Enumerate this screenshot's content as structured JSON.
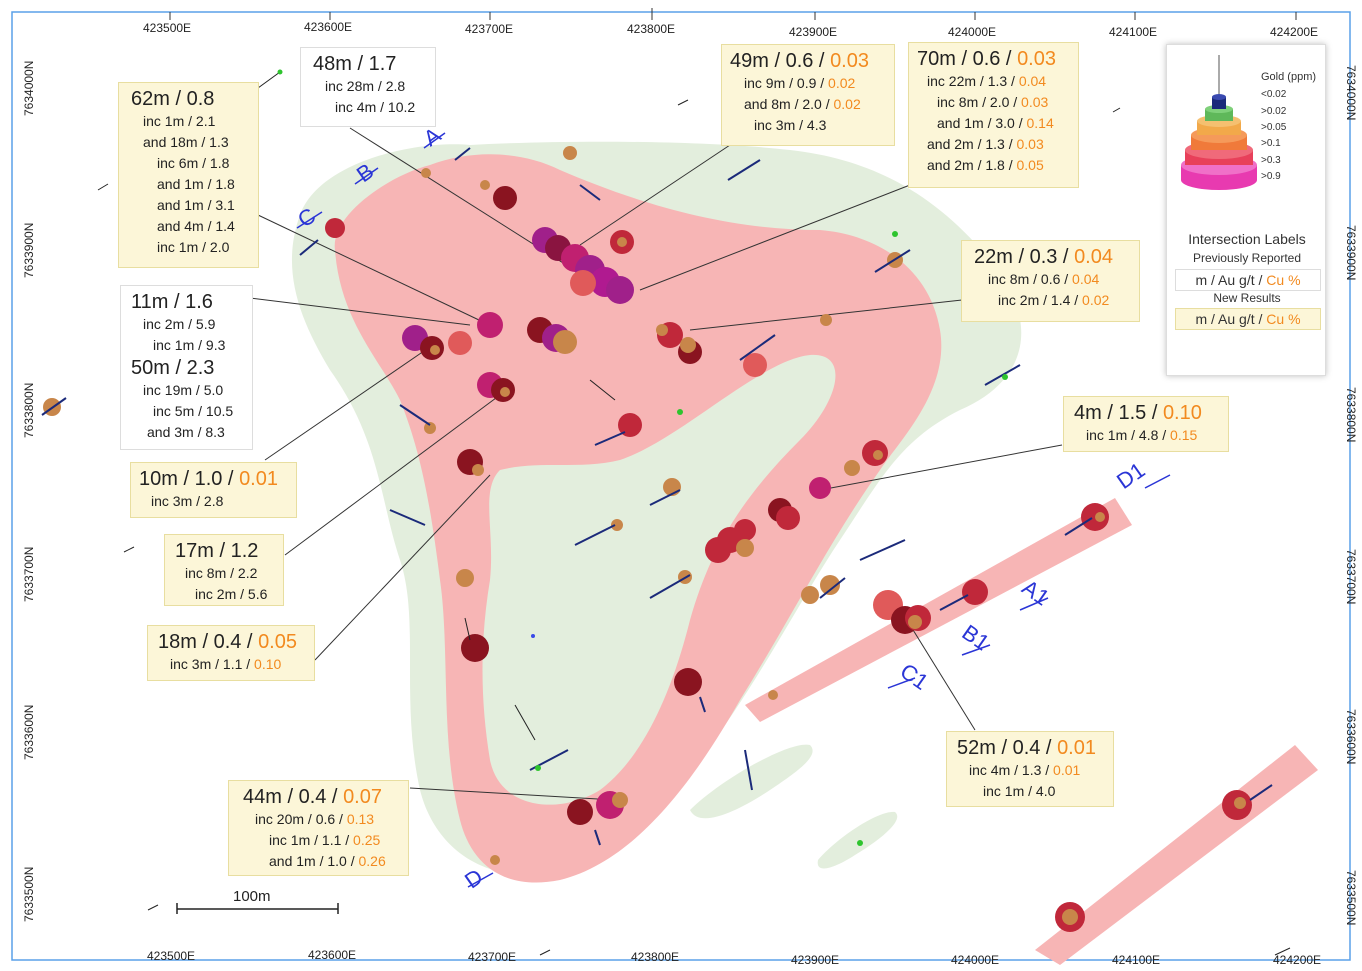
{
  "grid": {
    "top_eastings": [
      "423500E",
      "423600E",
      "423700E",
      "423800E",
      "423900E",
      "424000E",
      "424100E",
      "424200E"
    ],
    "bottom_eastings": [
      "423500E",
      "423600E",
      "423700E",
      "423800E",
      "423900E",
      "424000E",
      "424100E",
      "424200E"
    ],
    "left_northings": [
      "7634000N",
      "7633900N",
      "7633800N",
      "7633700N",
      "7633600N",
      "7633500N"
    ],
    "right_northings": [
      "7634000N",
      "7633900N",
      "7633800N",
      "7633700N",
      "7633600N",
      "7633500N"
    ]
  },
  "sections": [
    "A",
    "B",
    "C",
    "D",
    "A1",
    "B1",
    "C1",
    "D1"
  ],
  "labels": [
    {
      "id": "l62",
      "type": "prev",
      "main": "62m / 0.8",
      "main_cu": "",
      "subs": [
        {
          "t": "inc 1m / 2.1",
          "cu": ""
        },
        {
          "t": "and 18m / 1.3",
          "cu": ""
        },
        {
          "t": "inc 6m / 1.8",
          "cu": ""
        },
        {
          "t": "and 1m / 1.8",
          "cu": ""
        },
        {
          "t": "and 1m / 3.1",
          "cu": ""
        },
        {
          "t": "and 4m / 1.4",
          "cu": ""
        },
        {
          "t": "inc 1m / 2.0",
          "cu": ""
        }
      ]
    },
    {
      "id": "l48",
      "type": "prev",
      "main": "48m / 1.7",
      "main_cu": "",
      "subs": [
        {
          "t": "inc 28m / 2.8",
          "cu": ""
        },
        {
          "t": "inc 4m / 10.2",
          "cu": ""
        }
      ]
    },
    {
      "id": "l49",
      "type": "new",
      "main": "49m / 0.6 / ",
      "main_cu": "0.03",
      "subs": [
        {
          "t": "inc 9m / 0.9 / ",
          "cu": "0.02"
        },
        {
          "t": "and 8m / 2.0 / ",
          "cu": "0.02"
        },
        {
          "t": "inc 3m / 4.3",
          "cu": ""
        }
      ]
    },
    {
      "id": "l70",
      "type": "new",
      "main": "70m / 0.6 / ",
      "main_cu": "0.03",
      "subs": [
        {
          "t": "inc 22m / 1.3 / ",
          "cu": "0.04"
        },
        {
          "t": "inc 8m / 2.0 / ",
          "cu": "0.03"
        },
        {
          "t": "and 1m / 3.0 / ",
          "cu": "0.14"
        },
        {
          "t": "and 2m / 1.3 / ",
          "cu": "0.03"
        },
        {
          "t": "and 2m / 1.8 / ",
          "cu": "0.05"
        }
      ]
    },
    {
      "id": "l22",
      "type": "new",
      "main": "22m / 0.3 / ",
      "main_cu": "0.04",
      "subs": [
        {
          "t": "inc 8m / 0.6 / ",
          "cu": "0.04"
        },
        {
          "t": "inc 2m / 1.4 / ",
          "cu": "0.02"
        }
      ]
    },
    {
      "id": "l11",
      "type": "prev",
      "main": "11m / 1.6",
      "main_cu": "",
      "subs": [
        {
          "t": "inc 2m / 5.9",
          "cu": ""
        },
        {
          "t": "inc 1m / 9.3",
          "cu": ""
        }
      ]
    },
    {
      "id": "l50",
      "type": "prev",
      "main": "50m / 2.3",
      "main_cu": "",
      "subs": [
        {
          "t": "inc 19m / 5.0",
          "cu": ""
        },
        {
          "t": "inc 5m / 10.5",
          "cu": ""
        },
        {
          "t": "and 3m / 8.3",
          "cu": ""
        }
      ]
    },
    {
      "id": "l10",
      "type": "new",
      "main": "10m / 1.0 / ",
      "main_cu": "0.01",
      "subs": [
        {
          "t": "inc 3m / 2.8",
          "cu": ""
        }
      ]
    },
    {
      "id": "l4",
      "type": "new",
      "main": "4m / 1.5 / ",
      "main_cu": "0.10",
      "subs": [
        {
          "t": "inc 1m / 4.8 / ",
          "cu": "0.15"
        }
      ]
    },
    {
      "id": "l17",
      "type": "new",
      "main": "17m / 1.2",
      "main_cu": "",
      "subs": [
        {
          "t": "inc 8m / 2.2",
          "cu": ""
        },
        {
          "t": "inc 2m / 5.6",
          "cu": ""
        }
      ]
    },
    {
      "id": "l18",
      "type": "new",
      "main": "18m / 0.4 / ",
      "main_cu": "0.05",
      "subs": [
        {
          "t": "inc 3m / 1.1 / ",
          "cu": "0.10"
        }
      ]
    },
    {
      "id": "l52",
      "type": "new",
      "main": "52m / 0.4 / ",
      "main_cu": "0.01",
      "subs": [
        {
          "t": "inc 4m / 1.3 / ",
          "cu": "0.01"
        },
        {
          "t": "inc 1m / 4.0",
          "cu": ""
        }
      ]
    },
    {
      "id": "l44",
      "type": "new",
      "main": "44m / 0.4 / ",
      "main_cu": "0.07",
      "subs": [
        {
          "t": "inc 20m / 0.6 / ",
          "cu": "0.13"
        },
        {
          "t": "inc 1m / 1.1 / ",
          "cu": "0.25"
        },
        {
          "t": "and 1m / 1.0 / ",
          "cu": "0.26"
        }
      ]
    }
  ],
  "legend": {
    "title": "Gold (ppm)",
    "levels": [
      "<0.02",
      ">0.02",
      ">0.05",
      ">0.1",
      ">0.3",
      ">0.9"
    ],
    "level_colors": [
      "#1b2a7a",
      "#5fb85a",
      "#f2a94a",
      "#f07a3a",
      "#e8405a",
      "#e83ab0"
    ],
    "intersection_title": "Intersection Labels",
    "previously_reported": "Previously Reported",
    "new_results": "New Results",
    "format_prefix": "m / Au g/t / ",
    "format_cu": "Cu %"
  },
  "scale_bar": {
    "label": "100m"
  },
  "colors": {
    "high_grade_zone": "#f7b5b5",
    "low_grade_zone": "#e3eedd",
    "section_label": "#2a35d6",
    "copper": "#f28a1f"
  }
}
